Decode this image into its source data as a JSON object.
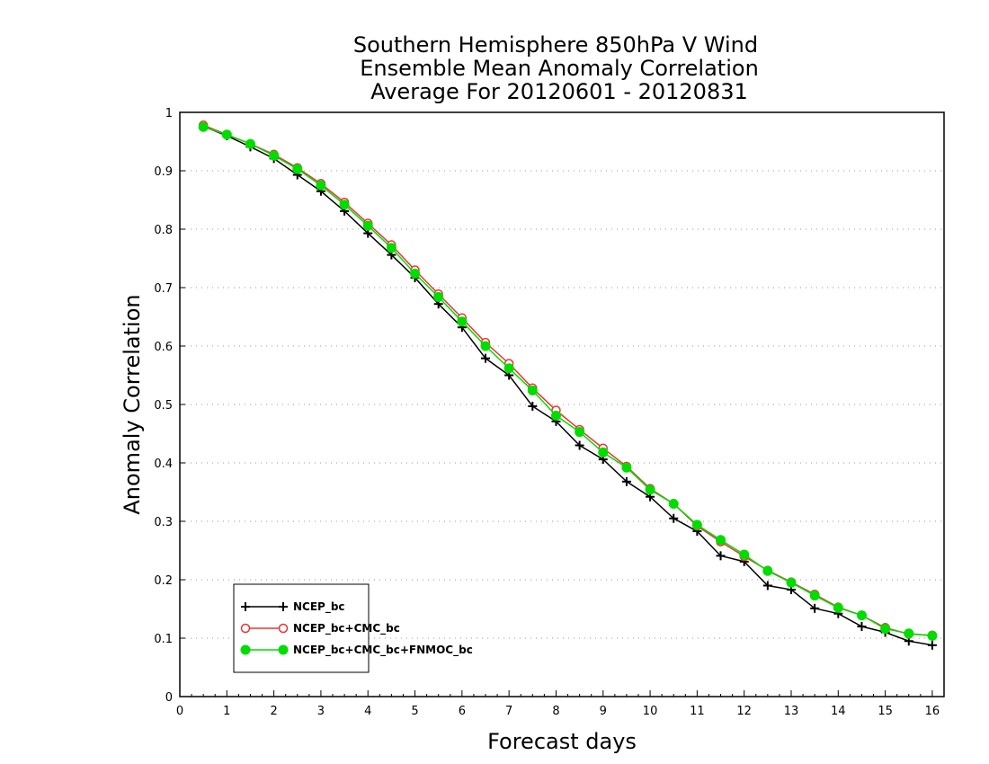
{
  "chart_data": {
    "type": "line",
    "title": [
      "Southern Hemisphere 850hPa V Wind",
      "Ensemble Mean Anomaly Correlation",
      "Average For 20120601 - 20120831"
    ],
    "xlabel": "Forecast days",
    "ylabel": "Anomaly Correlation",
    "xlim": [
      0,
      16.25
    ],
    "ylim": [
      0,
      1
    ],
    "xticks": [
      0,
      1,
      2,
      3,
      4,
      5,
      6,
      7,
      8,
      9,
      10,
      11,
      12,
      13,
      14,
      15,
      16
    ],
    "xtick_labels": [
      "0",
      "1",
      "2",
      "3",
      "4",
      "5",
      "6",
      "7",
      "8",
      "9",
      "10",
      "11",
      "12",
      "13",
      "14",
      "15",
      "16"
    ],
    "yticks": [
      0,
      0.1,
      0.2,
      0.3,
      0.4,
      0.5,
      0.6,
      0.7,
      0.8,
      0.9,
      1
    ],
    "ytick_labels": [
      "0",
      "0.1",
      "0.2",
      "0.3",
      "0.4",
      "0.5",
      "0.6",
      "0.7",
      "0.8",
      "0.9",
      "1"
    ],
    "grid": true,
    "legend_position": "bottom-left",
    "x": [
      0.5,
      1,
      1.5,
      2,
      2.5,
      3,
      3.5,
      4,
      4.5,
      5,
      5.5,
      6,
      6.5,
      7,
      7.5,
      8,
      8.5,
      9,
      9.5,
      10,
      10.5,
      11,
      11.5,
      12,
      12.5,
      13,
      13.5,
      14,
      14.5,
      15,
      15.5,
      16
    ],
    "series": [
      {
        "name": "NCEP_bc",
        "color": "#000000",
        "marker": "plus",
        "values": [
          0.976,
          0.96,
          0.941,
          0.921,
          0.893,
          0.865,
          0.831,
          0.793,
          0.756,
          0.717,
          0.672,
          0.632,
          0.579,
          0.55,
          0.497,
          0.471,
          0.43,
          0.406,
          0.368,
          0.342,
          0.305,
          0.283,
          0.241,
          0.231,
          0.19,
          0.183,
          0.151,
          0.142,
          0.12,
          0.11,
          0.095,
          0.088
        ]
      },
      {
        "name": "NCEP_bc+CMC_bc",
        "color": "#ee3333",
        "marker": "open-circle",
        "values": [
          0.978,
          0.962,
          0.946,
          0.928,
          0.905,
          0.878,
          0.846,
          0.81,
          0.773,
          0.73,
          0.689,
          0.648,
          0.606,
          0.57,
          0.528,
          0.49,
          0.457,
          0.425,
          0.394,
          0.356,
          0.33,
          0.292,
          0.265,
          0.24,
          0.216,
          0.196,
          0.175,
          0.153,
          0.139,
          0.118,
          0.107,
          0.105
        ]
      },
      {
        "name": "NCEP_bc+CMC_bc+FNMOC_bc",
        "color": "#00dd00",
        "marker": "filled-circle",
        "values": [
          0.975,
          0.962,
          0.946,
          0.926,
          0.903,
          0.875,
          0.842,
          0.806,
          0.768,
          0.724,
          0.684,
          0.642,
          0.6,
          0.562,
          0.524,
          0.481,
          0.453,
          0.418,
          0.392,
          0.354,
          0.33,
          0.294,
          0.268,
          0.243,
          0.215,
          0.195,
          0.173,
          0.152,
          0.139,
          0.116,
          0.108,
          0.104
        ]
      }
    ]
  }
}
